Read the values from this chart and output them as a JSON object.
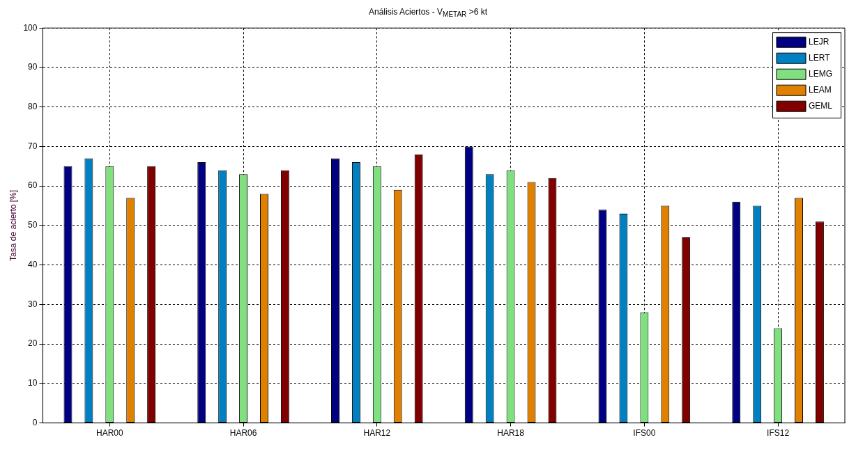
{
  "chart_data": {
    "type": "bar",
    "title": "Análisis Aciertos  - V$_{METAR}$ >6 kt",
    "ylabel": "Tasa de acierto [%]",
    "categories": [
      "HAR00",
      "HAR06",
      "HAR12",
      "HAR18",
      "IFS00",
      "IFS12"
    ],
    "series": [
      {
        "name": "LEJR",
        "color": "#000080",
        "values": [
          65,
          66,
          67,
          70,
          54,
          56
        ]
      },
      {
        "name": "LERT",
        "color": "#0080c0",
        "values": [
          67,
          64,
          66,
          63,
          53,
          55
        ]
      },
      {
        "name": "LEMG",
        "color": "#80e080",
        "values": [
          65,
          63,
          65,
          64,
          28,
          24
        ]
      },
      {
        "name": "LEAM",
        "color": "#e08000",
        "values": [
          57,
          58,
          59,
          61,
          55,
          57
        ]
      },
      {
        "name": "GEML",
        "color": "#800000",
        "values": [
          65,
          64,
          68,
          62,
          47,
          51
        ]
      }
    ],
    "ylim": [
      0,
      100
    ],
    "yticks": [
      0,
      10,
      20,
      30,
      40,
      50,
      60,
      70,
      80,
      90,
      100
    ],
    "grid": true,
    "legend": "top right"
  }
}
